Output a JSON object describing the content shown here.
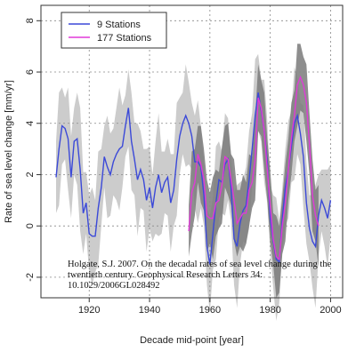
{
  "chart_data": {
    "type": "line",
    "xlabel": "Decade mid-point [year]",
    "ylabel": "Rate of sea level change [mm/yr]",
    "xlim": [
      1904,
      2004
    ],
    "ylim": [
      -2.8,
      8.6
    ],
    "x_ticks": [
      1920,
      1940,
      1960,
      1980,
      2000
    ],
    "y_ticks": [
      -2,
      0,
      2,
      4,
      6,
      8
    ],
    "x_tick_labels": [
      "1920",
      "1940",
      "1960",
      "1980",
      "2000"
    ],
    "y_tick_labels": [
      "-2",
      "0",
      "2",
      "4",
      "6",
      "8"
    ],
    "grid": true,
    "legend_position": "top-left",
    "series": [
      {
        "name": "9 Stations",
        "color": "#3b49d8",
        "band_color": "#cccccc",
        "x": [
          1909,
          1910,
          1911,
          1912,
          1913,
          1914,
          1915,
          1916,
          1917,
          1918,
          1919,
          1920,
          1921,
          1922,
          1923,
          1924,
          1925,
          1926,
          1927,
          1928,
          1929,
          1930,
          1931,
          1932,
          1933,
          1934,
          1935,
          1936,
          1937,
          1938,
          1939,
          1940,
          1941,
          1942,
          1943,
          1944,
          1945,
          1946,
          1947,
          1948,
          1949,
          1950,
          1951,
          1952,
          1953,
          1954,
          1955,
          1956,
          1957,
          1958,
          1959,
          1960,
          1961,
          1962,
          1963,
          1964,
          1965,
          1966,
          1967,
          1968,
          1969,
          1970,
          1971,
          1972,
          1973,
          1974,
          1975,
          1976,
          1977,
          1978,
          1979,
          1980,
          1981,
          1982,
          1983,
          1984,
          1985,
          1986,
          1987,
          1988,
          1989,
          1990,
          1991,
          1992,
          1993,
          1994,
          1995,
          1996,
          1997,
          1998,
          1999,
          2000
        ],
        "values": [
          1.9,
          3.0,
          3.9,
          3.8,
          3.4,
          1.9,
          3.3,
          3.4,
          2.2,
          0.5,
          0.9,
          -0.3,
          -0.4,
          -0.4,
          0.7,
          1.5,
          2.7,
          2.3,
          2.0,
          2.5,
          2.8,
          3.0,
          3.1,
          3.9,
          4.6,
          3.3,
          2.6,
          1.8,
          2.2,
          1.8,
          1.0,
          1.5,
          0.7,
          1.5,
          2.0,
          1.3,
          1.7,
          1.9,
          0.9,
          1.4,
          2.6,
          3.5,
          4.0,
          4.3,
          4.0,
          3.5,
          2.5,
          2.5,
          2.3,
          1.2,
          -0.8,
          -1.5,
          -0.3,
          0.9,
          1.8,
          1.7,
          2.4,
          2.6,
          1.5,
          -0.5,
          -0.8,
          0.1,
          0.6,
          0.8,
          1.8,
          3.0,
          4.3,
          5.2,
          4.5,
          3.7,
          2.5,
          0.3,
          -0.6,
          -1.3,
          -1.4,
          0.3,
          1.5,
          2.2,
          3.1,
          4.0,
          4.3,
          3.6,
          2.7,
          0.9,
          -0.1,
          -0.6,
          -0.8,
          0.4,
          1.0,
          0.7,
          0.3,
          1.0
        ]
      },
      {
        "name": "177 Stations",
        "color": "#e03ad8",
        "band_color": "#7a7a7a",
        "x": [
          1953,
          1954,
          1955,
          1956,
          1957,
          1958,
          1959,
          1960,
          1961,
          1962,
          1963,
          1964,
          1965,
          1966,
          1967,
          1968,
          1969,
          1970,
          1971,
          1972,
          1973,
          1974,
          1975,
          1976,
          1977,
          1978,
          1979,
          1980,
          1981,
          1982,
          1983,
          1984,
          1985,
          1986,
          1987,
          1988,
          1989,
          1990,
          1991,
          1992,
          1993,
          1994,
          1995,
          1996
        ],
        "values": [
          -0.2,
          1.3,
          1.7,
          2.8,
          2.4,
          1.8,
          0.4,
          0.3,
          0.3,
          0.9,
          1.0,
          1.6,
          2.7,
          2.6,
          1.8,
          1.0,
          0.1,
          0.3,
          0.5,
          0.5,
          1.4,
          1.7,
          2.6,
          5.0,
          4.6,
          3.7,
          2.2,
          0.8,
          -0.5,
          -1.2,
          -1.3,
          0.0,
          0.9,
          2.2,
          3.4,
          4.3,
          5.5,
          5.8,
          5.5,
          4.8,
          3.2,
          1.2,
          0.4,
          0.0
        ]
      }
    ],
    "legend": [
      {
        "name": "9 Stations",
        "color": "#3b49d8"
      },
      {
        "name": "177 Stations",
        "color": "#e03ad8"
      }
    ],
    "annotations": [
      "Holgate, S.J. 2007. On the decadal rates of sea level change during the",
      "twentieth century. Geophysical Research Letters 34:",
      "10.1029/2006GL028492"
    ]
  }
}
